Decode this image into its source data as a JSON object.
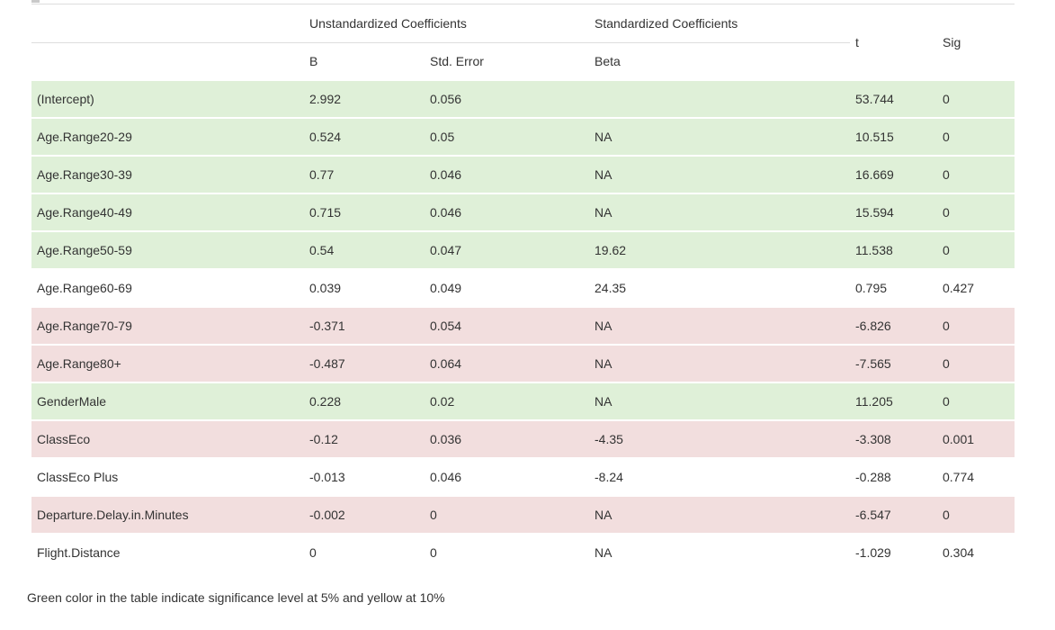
{
  "table": {
    "header": {
      "group_unstandardized": "Unstandardized Coefficients",
      "group_standardized": "Standardized Coefficients",
      "col_b": "B",
      "col_std_error": "Std. Error",
      "col_beta": "Beta",
      "col_t": "t",
      "col_sig": "Sig"
    },
    "rows": [
      {
        "label": "(Intercept)",
        "b": "2.992",
        "std_error": "0.056",
        "beta": "",
        "t": "53.744",
        "sig": "0",
        "highlight": "green"
      },
      {
        "label": "Age.Range20-29",
        "b": "0.524",
        "std_error": "0.05",
        "beta": "NA",
        "t": "10.515",
        "sig": "0",
        "highlight": "green"
      },
      {
        "label": "Age.Range30-39",
        "b": "0.77",
        "std_error": "0.046",
        "beta": "NA",
        "t": "16.669",
        "sig": "0",
        "highlight": "green"
      },
      {
        "label": "Age.Range40-49",
        "b": "0.715",
        "std_error": "0.046",
        "beta": "NA",
        "t": "15.594",
        "sig": "0",
        "highlight": "green"
      },
      {
        "label": "Age.Range50-59",
        "b": "0.54",
        "std_error": "0.047",
        "beta": "19.62",
        "t": "11.538",
        "sig": "0",
        "highlight": "green"
      },
      {
        "label": "Age.Range60-69",
        "b": "0.039",
        "std_error": "0.049",
        "beta": "24.35",
        "t": "0.795",
        "sig": "0.427",
        "highlight": "none"
      },
      {
        "label": "Age.Range70-79",
        "b": "-0.371",
        "std_error": "0.054",
        "beta": "NA",
        "t": "-6.826",
        "sig": "0",
        "highlight": "red"
      },
      {
        "label": "Age.Range80+",
        "b": "-0.487",
        "std_error": "0.064",
        "beta": "NA",
        "t": "-7.565",
        "sig": "0",
        "highlight": "red"
      },
      {
        "label": "GenderMale",
        "b": "0.228",
        "std_error": "0.02",
        "beta": "NA",
        "t": "11.205",
        "sig": "0",
        "highlight": "green"
      },
      {
        "label": "ClassEco",
        "b": "-0.12",
        "std_error": "0.036",
        "beta": "-4.35",
        "t": "-3.308",
        "sig": "0.001",
        "highlight": "red"
      },
      {
        "label": "ClassEco Plus",
        "b": "-0.013",
        "std_error": "0.046",
        "beta": "-8.24",
        "t": "-0.288",
        "sig": "0.774",
        "highlight": "none"
      },
      {
        "label": "Departure.Delay.in.Minutes",
        "b": "-0.002",
        "std_error": "0",
        "beta": "NA",
        "t": "-6.547",
        "sig": "0",
        "highlight": "red"
      },
      {
        "label": "Flight.Distance",
        "b": "0",
        "std_error": "0",
        "beta": "NA",
        "t": "-1.029",
        "sig": "0.304",
        "highlight": "none"
      }
    ]
  },
  "footnote": "Green color in the table indicate significance level at 5% and yellow at 10%",
  "colors": {
    "green_row": "#dff0d8",
    "red_row": "#f2dede",
    "border": "#dddddd",
    "text": "#333333"
  }
}
